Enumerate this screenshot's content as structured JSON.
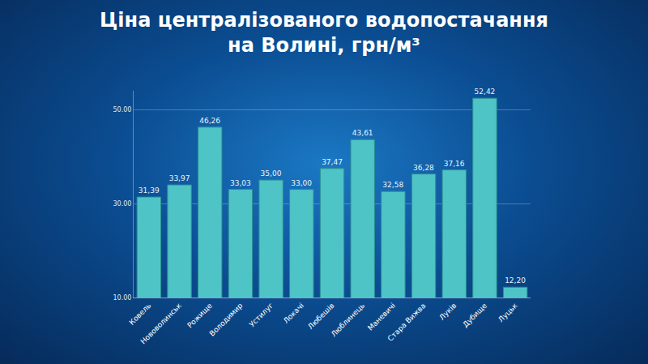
{
  "chart_data": {
    "type": "bar",
    "title": "Ціна централізованого водопостачання на Волині, грн/м³",
    "categories": [
      "Ковель",
      "Нововолинськ",
      "Рожище",
      "Володимир",
      "Устилуг",
      "Локачі",
      "Любешів",
      "Люблинець",
      "Маневичі",
      "Стара Вижва",
      "Луків",
      "Дубище",
      "Луцьк"
    ],
    "values": [
      31.39,
      33.97,
      46.26,
      33.03,
      35.0,
      33.0,
      37.47,
      43.61,
      32.58,
      36.28,
      37.16,
      52.42,
      12.2
    ],
    "value_labels": [
      "31,39",
      "33,97",
      "46,26",
      "33,03",
      "35,00",
      "33,00",
      "37,47",
      "43,61",
      "32,58",
      "36,28",
      "37,16",
      "52,42",
      "12,20"
    ],
    "color": "#4fc4c6",
    "ylim": [
      10,
      54
    ],
    "yticks": [
      {
        "value": 10,
        "label": "10.00"
      },
      {
        "value": 30,
        "label": "30.00"
      },
      {
        "value": 50,
        "label": "50.00"
      }
    ],
    "grid": true,
    "data_labels": true
  }
}
